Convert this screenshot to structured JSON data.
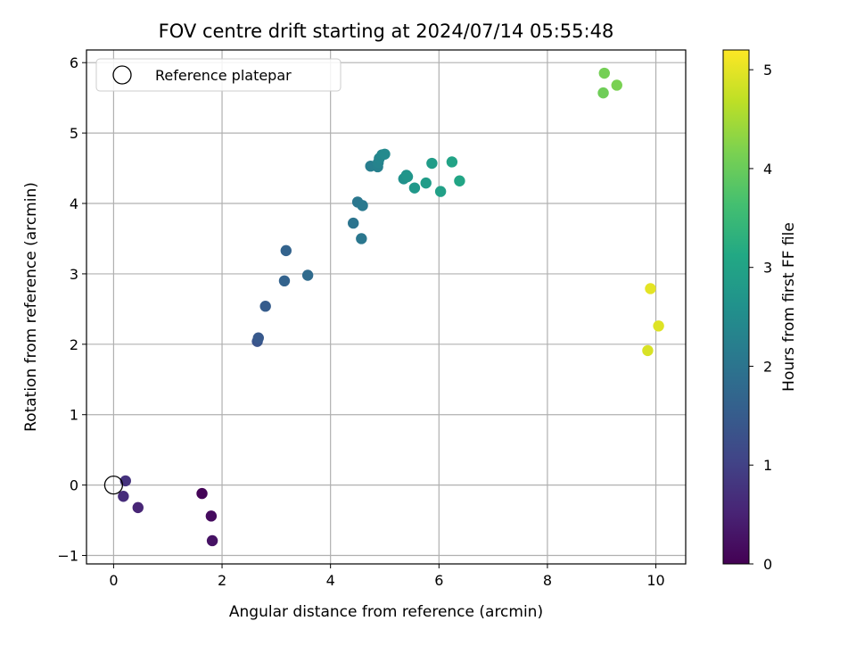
{
  "chart_data": {
    "type": "scatter",
    "title": "FOV centre drift starting at 2024/07/14 05:55:48",
    "xlabel": "Angular distance from reference (arcmin)",
    "ylabel": "Rotation from reference (arcmin)",
    "xlim": [
      -0.5,
      10.55
    ],
    "ylim": [
      -1.12,
      6.18
    ],
    "xticks": [
      0,
      2,
      4,
      6,
      8,
      10
    ],
    "yticks": [
      -1,
      0,
      1,
      2,
      3,
      4,
      5,
      6
    ],
    "grid": true,
    "legend": {
      "position": "top-left",
      "entries": [
        "Reference platepar"
      ]
    },
    "reference_point": {
      "x": 0,
      "y": 0
    },
    "colorbar": {
      "label": "Hours from first FF file",
      "range": [
        0,
        5.2
      ],
      "ticks": [
        0,
        1,
        2,
        3,
        4,
        5
      ],
      "colormap": "viridis"
    },
    "points": [
      {
        "x": 1.63,
        "y": -0.12,
        "c": 0.05
      },
      {
        "x": 1.8,
        "y": -0.44,
        "c": 0.15
      },
      {
        "x": 1.82,
        "y": -0.79,
        "c": 0.25
      },
      {
        "x": 0.45,
        "y": -0.32,
        "c": 0.55
      },
      {
        "x": 0.18,
        "y": -0.16,
        "c": 0.65
      },
      {
        "x": 0.22,
        "y": 0.06,
        "c": 0.75
      },
      {
        "x": 2.65,
        "y": 2.04,
        "c": 1.35
      },
      {
        "x": 2.67,
        "y": 2.09,
        "c": 1.45
      },
      {
        "x": 2.8,
        "y": 2.54,
        "c": 1.5
      },
      {
        "x": 3.15,
        "y": 2.9,
        "c": 1.65
      },
      {
        "x": 3.18,
        "y": 3.33,
        "c": 1.65
      },
      {
        "x": 3.58,
        "y": 2.98,
        "c": 1.8
      },
      {
        "x": 4.42,
        "y": 3.72,
        "c": 2.0
      },
      {
        "x": 4.5,
        "y": 4.02,
        "c": 2.05
      },
      {
        "x": 4.57,
        "y": 3.5,
        "c": 2.05
      },
      {
        "x": 4.59,
        "y": 3.97,
        "c": 2.1
      },
      {
        "x": 4.74,
        "y": 4.53,
        "c": 2.2
      },
      {
        "x": 4.87,
        "y": 4.52,
        "c": 2.25
      },
      {
        "x": 4.88,
        "y": 4.58,
        "c": 2.3
      },
      {
        "x": 4.9,
        "y": 4.64,
        "c": 2.35
      },
      {
        "x": 4.95,
        "y": 4.69,
        "c": 2.4
      },
      {
        "x": 5.0,
        "y": 4.7,
        "c": 2.45
      },
      {
        "x": 5.35,
        "y": 4.35,
        "c": 2.6
      },
      {
        "x": 5.4,
        "y": 4.4,
        "c": 2.65
      },
      {
        "x": 5.42,
        "y": 4.38,
        "c": 2.7
      },
      {
        "x": 5.55,
        "y": 4.22,
        "c": 2.75
      },
      {
        "x": 5.76,
        "y": 4.29,
        "c": 2.85
      },
      {
        "x": 5.87,
        "y": 4.57,
        "c": 2.85
      },
      {
        "x": 6.03,
        "y": 4.17,
        "c": 2.95
      },
      {
        "x": 6.24,
        "y": 4.59,
        "c": 3.0
      },
      {
        "x": 6.38,
        "y": 4.32,
        "c": 3.05
      },
      {
        "x": 9.03,
        "y": 5.57,
        "c": 4.05
      },
      {
        "x": 9.05,
        "y": 5.85,
        "c": 4.1
      },
      {
        "x": 9.28,
        "y": 5.68,
        "c": 4.15
      },
      {
        "x": 9.9,
        "y": 2.79,
        "c": 5.0
      },
      {
        "x": 9.85,
        "y": 1.91,
        "c": 4.9
      },
      {
        "x": 10.05,
        "y": 2.26,
        "c": 4.95
      }
    ]
  }
}
